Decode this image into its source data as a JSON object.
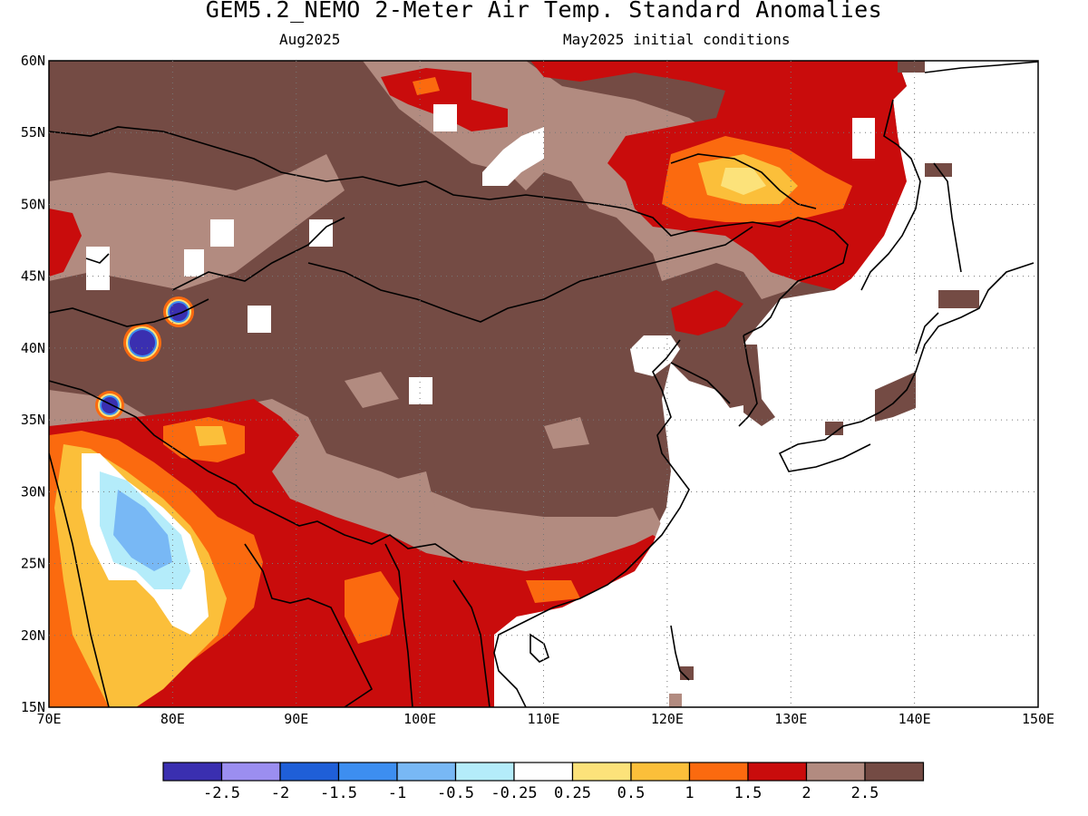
{
  "title": "GEM5.2_NEMO 2-Meter Air Temp. Standard Anomalies",
  "subtitle_left": "Aug2025",
  "subtitle_right": "May2025 initial conditions",
  "map": {
    "lon_range": [
      70,
      150
    ],
    "lat_range": [
      15,
      60
    ],
    "lon_ticks": [
      "70E",
      "80E",
      "90E",
      "100E",
      "110E",
      "120E",
      "130E",
      "140E",
      "150E"
    ],
    "lat_ticks": [
      "60N",
      "55N",
      "50N",
      "45N",
      "40N",
      "35N",
      "30N",
      "25N",
      "20N",
      "15N"
    ],
    "grid": "dotted"
  },
  "colorbar": {
    "colors": [
      "#3a2fb0",
      "#9b8ef0",
      "#1f5fd8",
      "#3d8ef0",
      "#78b8f5",
      "#b4ecfa",
      "#ffffff",
      "#fce27a",
      "#fbbf3a",
      "#fb6a0f",
      "#c90c0c",
      "#b28b80",
      "#744b44"
    ],
    "labels": [
      "-2.5",
      "-2",
      "-1.5",
      "-1",
      "-0.5",
      "-0.25",
      "0.25",
      "0.5",
      "1",
      "1.5",
      "2",
      "2.5"
    ]
  },
  "chart_data": {
    "type": "heatmap",
    "title": "GEM5.2_NEMO 2-Meter Air Temp. Standard Anomalies",
    "variable": "2-Meter Air Temp. Standard Anomalies",
    "period": "Aug2025",
    "initial_conditions": "May2025 initial conditions",
    "x_range": [
      70,
      150
    ],
    "y_range": [
      15,
      60
    ],
    "levels": [
      -2.5,
      -2,
      -1.5,
      -1,
      -0.5,
      -0.25,
      0.25,
      0.5,
      1,
      1.5,
      2,
      2.5
    ]
  }
}
